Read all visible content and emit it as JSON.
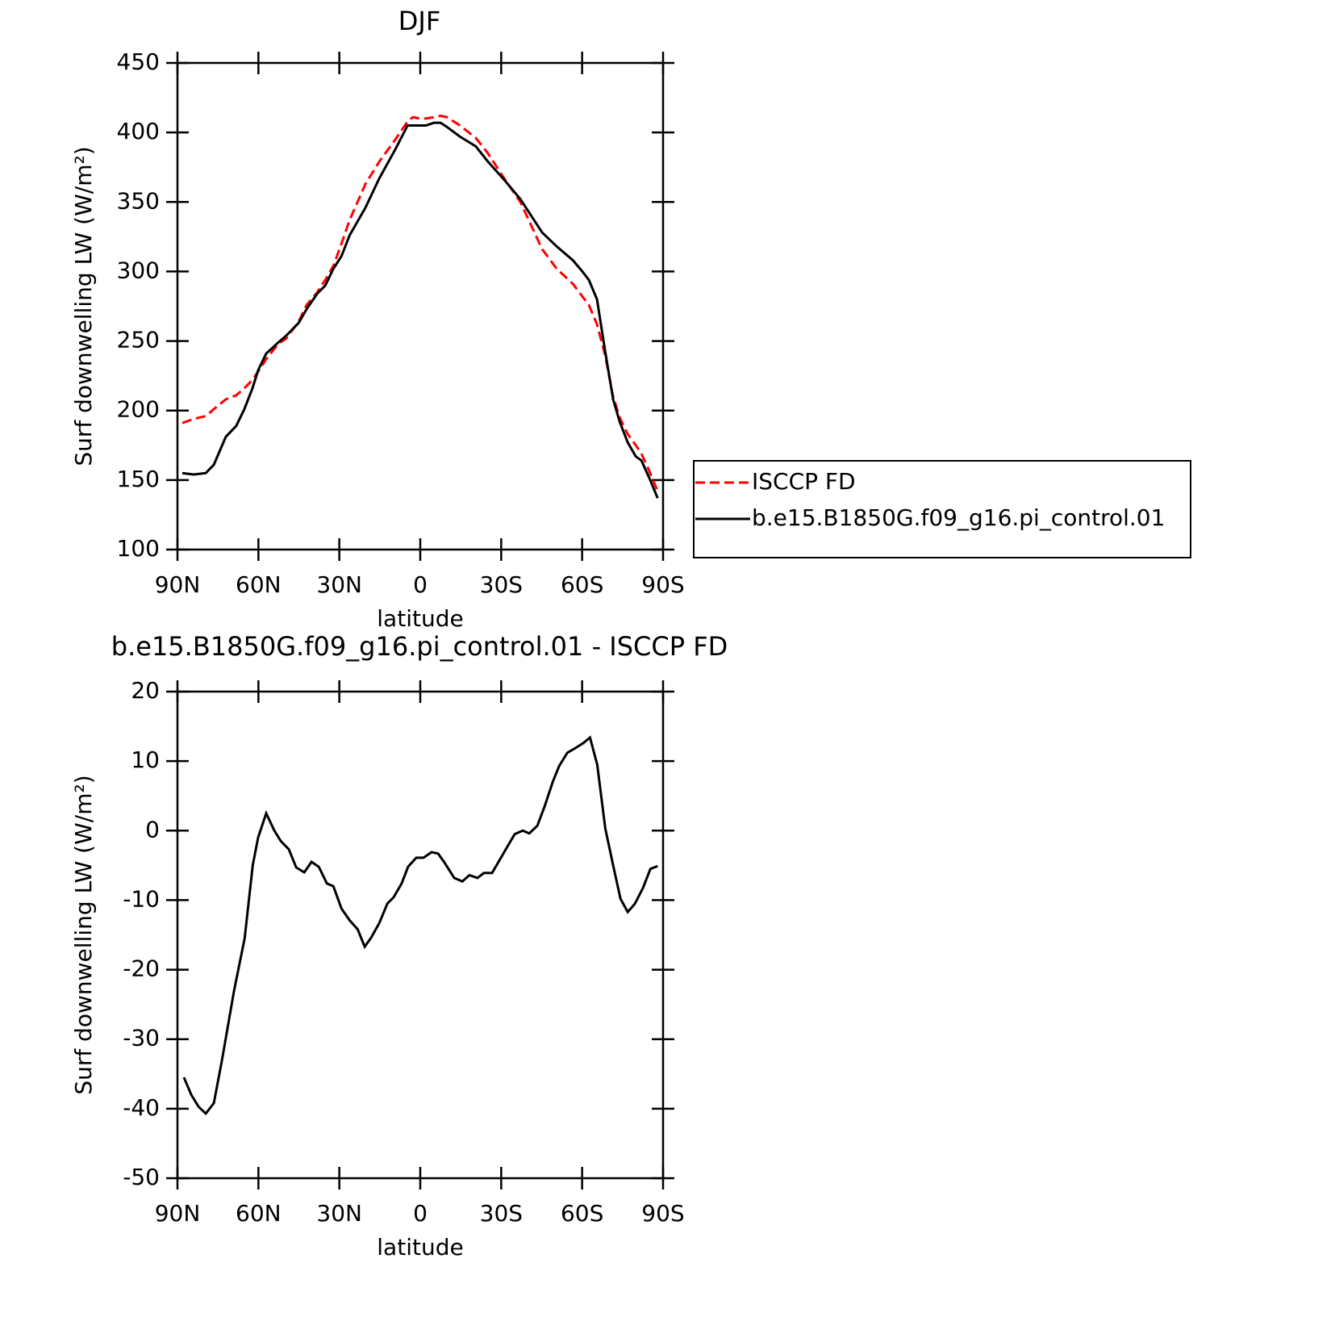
{
  "chart_data": [
    {
      "type": "line",
      "title": "DJF",
      "xlabel": "latitude",
      "ylabel": "Surf downwelling LW (W/m²)",
      "x": [
        88.2,
        84.0,
        79.5,
        76.5,
        72.1,
        68.2,
        65.2,
        62.2,
        60.1,
        57.1,
        52.6,
        49.6,
        45.1,
        42.1,
        38.2,
        35.2,
        32.2,
        29.2,
        26.2,
        20.3,
        15.2,
        9.2,
        4.7,
        2.7,
        0.3,
        -2.1,
        -5.1,
        -7.5,
        -9.9,
        -14.7,
        -20.6,
        -25.1,
        -31.1,
        -37.1,
        -45.2,
        -50.6,
        -56.6,
        -60.1,
        -62.5,
        -65.5,
        -68.5,
        -71.5,
        -73.9,
        -76.9,
        -79.9,
        -82.0,
        -85.0,
        -88.0
      ],
      "series": [
        {
          "name": "ISCCP FD",
          "color": "#ff0000",
          "style": "dashed",
          "values": [
            191,
            194,
            196,
            201,
            208,
            211,
            216,
            222,
            228,
            237,
            248,
            252,
            264,
            276,
            285,
            294,
            304,
            320,
            337,
            363,
            379,
            395,
            408,
            411,
            410,
            410,
            411,
            412,
            411,
            405,
            396,
            385,
            367,
            350,
            316,
            302,
            291,
            282,
            276,
            262,
            240,
            210,
            195,
            183,
            175,
            169,
            156,
            142
          ]
        },
        {
          "name": "b.e15.B1850G.f09_g16.pi_control.01",
          "color": "#000000",
          "style": "solid",
          "values": [
            155,
            154,
            155,
            161,
            181,
            189,
            201,
            216,
            229,
            241,
            249,
            254,
            263,
            273,
            284,
            290,
            302,
            311,
            326,
            346,
            367,
            388,
            405,
            405,
            405,
            405,
            407,
            407,
            404,
            397,
            390,
            379,
            366,
            352,
            328,
            318,
            308,
            300,
            294,
            280,
            243,
            208,
            192,
            177,
            167,
            164,
            151,
            137
          ]
        }
      ],
      "xlim": [
        90,
        -90
      ],
      "xticks": [
        {
          "value": 90,
          "label": "90N"
        },
        {
          "value": 60,
          "label": "60N"
        },
        {
          "value": 30,
          "label": "30N"
        },
        0,
        {
          "value": -30,
          "label": "30S"
        },
        {
          "value": -60,
          "label": "60S"
        },
        {
          "value": -90,
          "label": "90S"
        }
      ],
      "ylim": [
        100,
        450
      ],
      "yticks": [
        100,
        150,
        200,
        250,
        300,
        350,
        400,
        450
      ]
    },
    {
      "type": "line",
      "title": "b.e15.B1850G.f09_g16.pi_control.01 - ISCCP FD",
      "xlabel": "latitude",
      "ylabel": "Surf downwelling LW (W/m²)",
      "x": [
        87.6,
        84.9,
        82.2,
        79.5,
        76.5,
        73.5,
        69.0,
        65.1,
        62.1,
        60.1,
        57.1,
        54.1,
        51.7,
        48.7,
        46.0,
        43.0,
        40.3,
        37.6,
        34.6,
        32.2,
        29.2,
        26.2,
        23.2,
        20.6,
        18.2,
        15.2,
        12.2,
        9.9,
        6.9,
        4.5,
        1.5,
        -1.2,
        -4.2,
        -6.6,
        -9.0,
        -12.6,
        -15.6,
        -18.2,
        -21.2,
        -23.6,
        -26.6,
        -29.6,
        -32.6,
        -35.0,
        -38.0,
        -40.4,
        -43.4,
        -46.1,
        -49.1,
        -51.5,
        -54.5,
        -57.2,
        -60.5,
        -62.9,
        -65.6,
        -68.6,
        -71.6,
        -74.2,
        -76.9,
        -79.6,
        -82.6,
        -85.3,
        -88.0
      ],
      "series": [
        {
          "color": "#000000",
          "style": "solid",
          "values": [
            -35.5,
            -38,
            -39.7,
            -40.7,
            -39.2,
            -33,
            -23,
            -15.5,
            -5,
            -1,
            2.5,
            0,
            -1.5,
            -2.7,
            -5.3,
            -6,
            -4.5,
            -5.2,
            -7.6,
            -8,
            -11.2,
            -12.9,
            -14.2,
            -16.7,
            -15.4,
            -13.3,
            -10.5,
            -9.6,
            -7.6,
            -5.2,
            -3.9,
            -3.9,
            -3.1,
            -3.3,
            -4.6,
            -6.8,
            -7.3,
            -6.4,
            -6.8,
            -6.1,
            -6.1,
            -4.1,
            -2.1,
            -0.5,
            0,
            -0.4,
            0.7,
            3.5,
            7,
            9.3,
            11.2,
            11.8,
            12.6,
            13.4,
            9.5,
            0.3,
            -5.2,
            -9.8,
            -11.7,
            -10.5,
            -8.2,
            -5.5,
            -5.1
          ]
        }
      ],
      "xlim": [
        90,
        -90
      ],
      "xticks": [
        {
          "value": 90,
          "label": "90N"
        },
        {
          "value": 60,
          "label": "60N"
        },
        {
          "value": 30,
          "label": "30N"
        },
        0,
        {
          "value": -30,
          "label": "30S"
        },
        {
          "value": -60,
          "label": "60S"
        },
        {
          "value": -90,
          "label": "90S"
        }
      ],
      "ylim": [
        -50,
        20
      ],
      "yticks": [
        -50,
        -40,
        -30,
        -20,
        -10,
        0,
        10,
        20
      ]
    }
  ]
}
